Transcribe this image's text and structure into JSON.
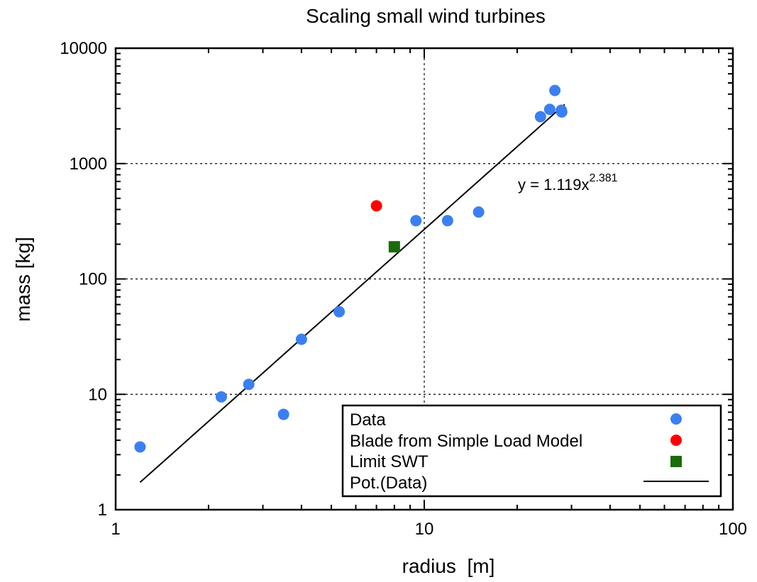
{
  "chart_data": {
    "type": "scatter",
    "title": "Scaling small wind turbines",
    "xlabel": "radius  [m]",
    "ylabel": "mass [kg]",
    "xscale": "log",
    "yscale": "log",
    "xlim": [
      1,
      100
    ],
    "ylim": [
      1,
      10000
    ],
    "xticks": [
      1,
      10,
      100
    ],
    "xtick_labels": [
      "1",
      "10",
      "100"
    ],
    "yticks": [
      1,
      10,
      100,
      1000,
      10000
    ],
    "ytick_labels": [
      "1",
      "10",
      "100",
      "1000",
      "10000"
    ],
    "grid": "major dotted",
    "legend_position": "bottom-right",
    "colors": {
      "data": "#3b7ff2",
      "blade": "#ff0000",
      "limit": "#1a6b0a",
      "fit": "#000000"
    },
    "series": [
      {
        "name": "Data",
        "marker": "circle",
        "color": "#3b7ff2",
        "points": [
          {
            "x": 1.2,
            "y": 3.5
          },
          {
            "x": 2.2,
            "y": 9.5
          },
          {
            "x": 2.7,
            "y": 12.2
          },
          {
            "x": 3.5,
            "y": 6.7
          },
          {
            "x": 4.0,
            "y": 30
          },
          {
            "x": 5.3,
            "y": 52
          },
          {
            "x": 9.4,
            "y": 320
          },
          {
            "x": 11.9,
            "y": 320
          },
          {
            "x": 15.0,
            "y": 380
          },
          {
            "x": 23.8,
            "y": 2550
          },
          {
            "x": 25.5,
            "y": 2950
          },
          {
            "x": 26.5,
            "y": 4300
          },
          {
            "x": 27.8,
            "y": 2900
          },
          {
            "x": 27.9,
            "y": 2800
          }
        ]
      },
      {
        "name": "Blade from Simple Load Model",
        "marker": "circle",
        "color": "#ff0000",
        "points": [
          {
            "x": 7.0,
            "y": 430
          }
        ]
      },
      {
        "name": "Limit SWT",
        "marker": "square",
        "color": "#1a6b0a",
        "points": [
          {
            "x": 8.0,
            "y": 190
          }
        ]
      },
      {
        "name": "Pot.(Data)",
        "type": "line",
        "color": "#000000",
        "coefficient": 1.119,
        "exponent": 2.381,
        "x_range": [
          1.2,
          28.5
        ]
      }
    ],
    "annotation": {
      "base": "y = 1.119x",
      "sup": "2.381"
    }
  }
}
